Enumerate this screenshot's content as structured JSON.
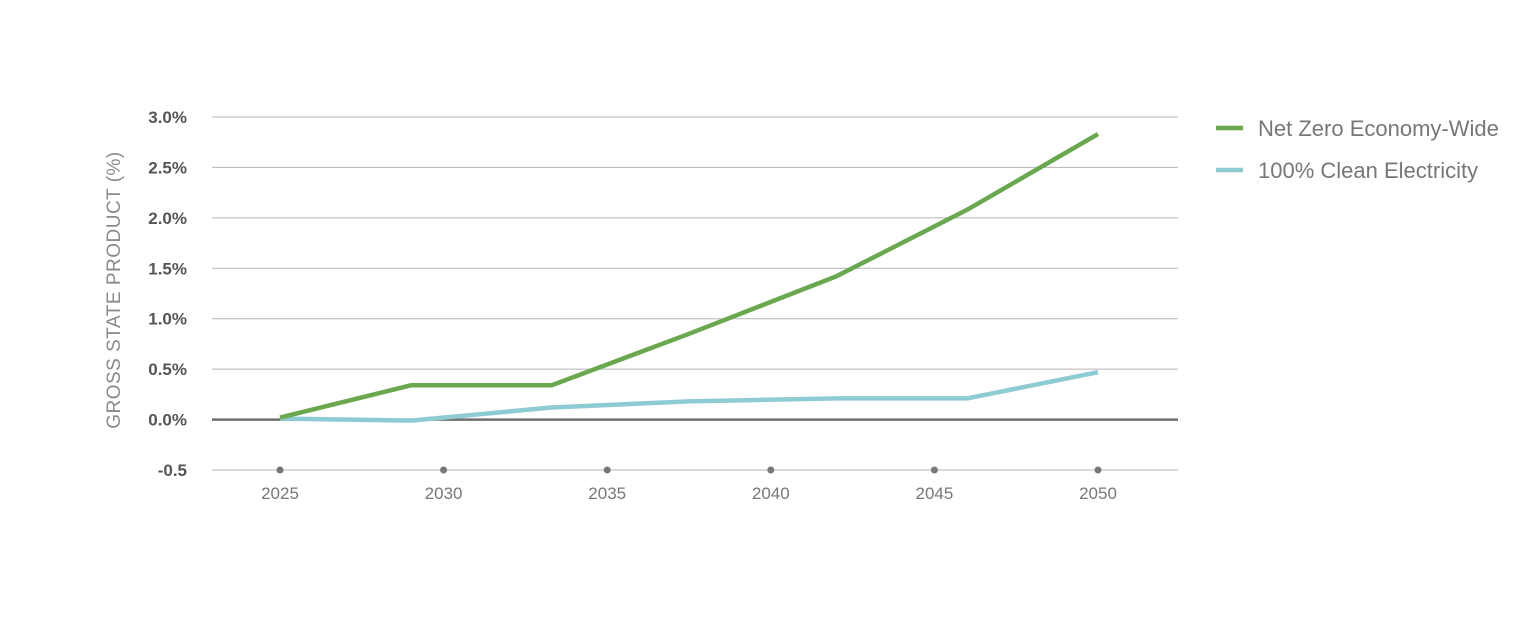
{
  "chart_data": {
    "type": "line",
    "title": "",
    "xlabel": "",
    "ylabel": "GROSS STATE PRODUCT (%)",
    "x": [
      2025,
      2029,
      2033.3,
      2037.5,
      2042,
      2046,
      2050
    ],
    "x_ticks": [
      "2025",
      "2030",
      "2035",
      "2040",
      "2045",
      "2050"
    ],
    "y_ticks": [
      "-0.5",
      "0.0%",
      "0.5%",
      "1.0%",
      "1.5%",
      "2.0%",
      "2.5%",
      "3.0%"
    ],
    "ylim": [
      -0.5,
      3.0
    ],
    "xlim": [
      2023,
      2052.5
    ],
    "grid": true,
    "legend_position": "right",
    "series": [
      {
        "name": "Net Zero Economy-Wide",
        "color": "#6aa84f",
        "values": [
          0.02,
          0.34,
          0.34,
          0.85,
          1.42,
          2.08,
          2.83
        ]
      },
      {
        "name": "100% Clean Electricity",
        "color": "#8ecbd3",
        "values": [
          0.01,
          -0.01,
          0.12,
          0.18,
          0.21,
          0.21,
          0.47
        ]
      }
    ]
  },
  "colors": {
    "gridline": "#b5b5b5",
    "zero_line": "#6f6f6f",
    "tick_dot": "#777777"
  }
}
